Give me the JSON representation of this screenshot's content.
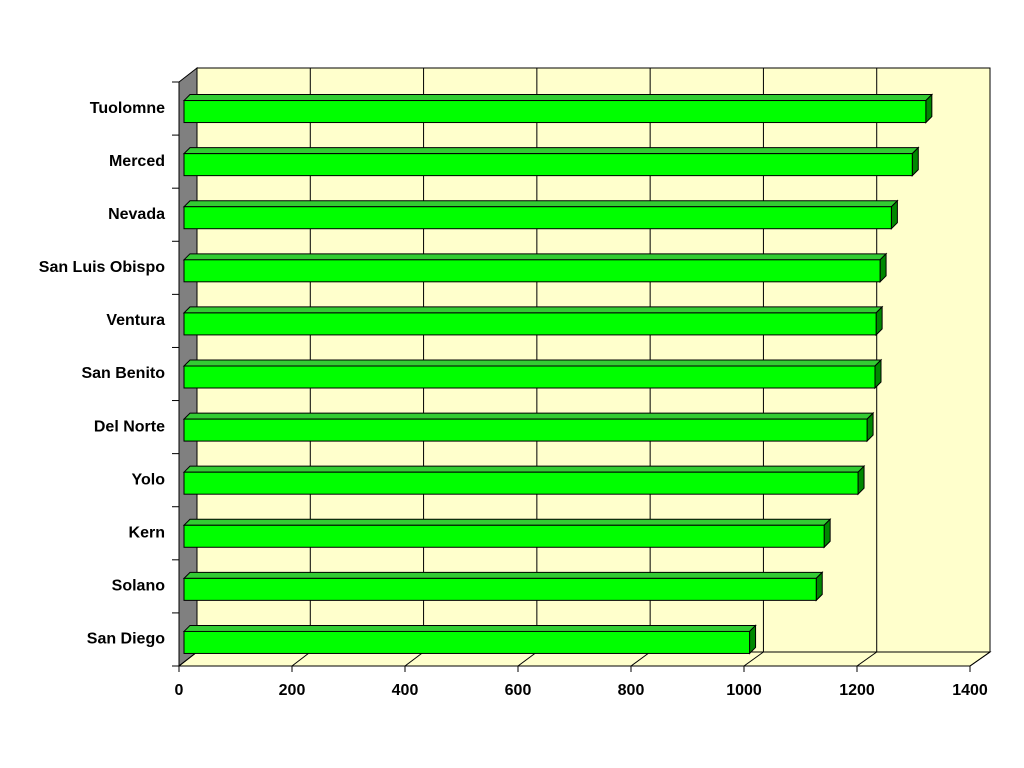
{
  "chart_data": {
    "type": "bar",
    "orientation": "horizontal",
    "color": "#00ff00",
    "categories": [
      "Tuolomne",
      "Merced",
      "Nevada",
      "San Luis Obispo",
      "Ventura",
      "San Benito",
      "Del Norte",
      "Yolo",
      "Kern",
      "Solano",
      "San Diego"
    ],
    "values": [
      1313,
      1289,
      1252,
      1232,
      1225,
      1223,
      1209,
      1193,
      1133,
      1119,
      1001
    ],
    "xlim": [
      0,
      1400
    ],
    "xticks": [
      0,
      200,
      400,
      600,
      800,
      1000,
      1200,
      1400
    ],
    "grid": true
  }
}
